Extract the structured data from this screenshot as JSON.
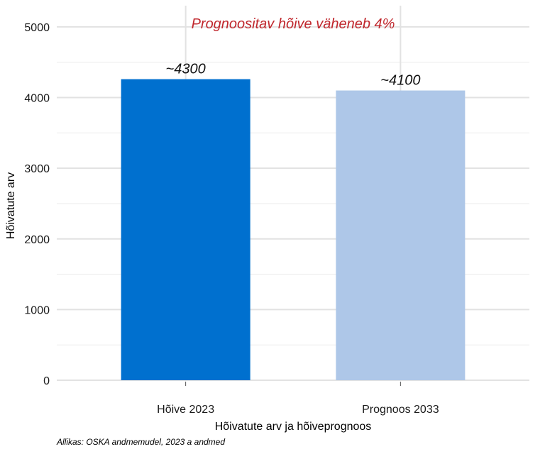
{
  "chart_data": {
    "type": "bar",
    "categories": [
      "Hõive 2023",
      "Prognoos 2033"
    ],
    "values": [
      4260,
      4100
    ],
    "data_labels": [
      "~4300",
      "~4100"
    ],
    "bar_colors": [
      "#0070CF",
      "#AEC7E8"
    ],
    "xlabel": "Hõivatute arv ja hõiveprognoos",
    "ylabel": "Hõivatute arv",
    "ylim": [
      0,
      5300
    ],
    "yticks": [
      0,
      1000,
      2000,
      3000,
      4000,
      5000
    ],
    "grid": true,
    "annotation": {
      "text": "Prognoositav hõive väheneb 4%",
      "color": "#C0272D"
    }
  },
  "caption": "Allikas: OSKA andmemudel, 2023 a andmed"
}
